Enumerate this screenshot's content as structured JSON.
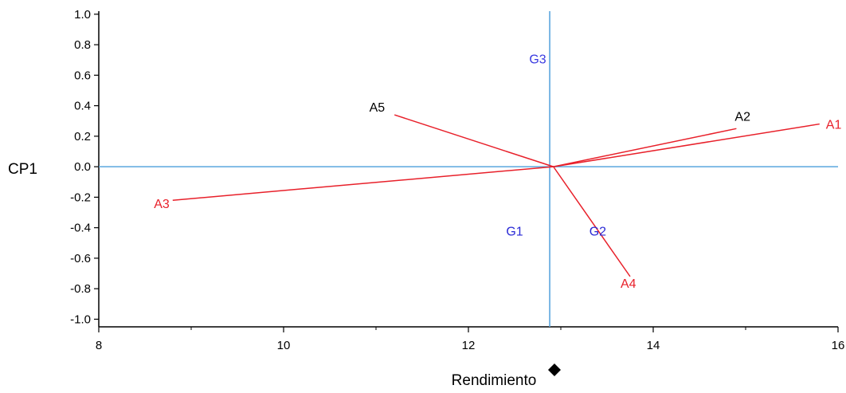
{
  "chart_data": {
    "type": "scatter",
    "title": "",
    "xlabel": "Rendimiento",
    "ylabel": "CP1",
    "xlim": [
      8,
      16
    ],
    "ylim": [
      -1.05,
      1.02
    ],
    "x_ticks": [
      "8",
      "10",
      "12",
      "14",
      "16"
    ],
    "y_ticks": [
      "1.0",
      "0.8",
      "0.6",
      "0.4",
      "0.2",
      "0.0",
      "-0.2",
      "-0.4",
      "-0.6",
      "-0.8",
      "-1.0"
    ],
    "grid": false,
    "reference_lines": {
      "x": 12.88,
      "y": 0.0
    },
    "vector_origin": {
      "x": 12.92,
      "y": 0.0
    },
    "environments": [
      {
        "label": "A1",
        "x": 15.8,
        "y": 0.28,
        "color": "#e8202a"
      },
      {
        "label": "A2",
        "x": 14.9,
        "y": 0.25,
        "color": "#000000"
      },
      {
        "label": "A3",
        "x": 8.8,
        "y": -0.22,
        "color": "#e8202a"
      },
      {
        "label": "A4",
        "x": 13.75,
        "y": -0.72,
        "color": "#e8202a"
      },
      {
        "label": "A5",
        "x": 11.2,
        "y": 0.34,
        "color": "#000000"
      }
    ],
    "genotypes": [
      {
        "label": "G1",
        "x": 12.5,
        "y": -0.42,
        "color": "#2a2ad6"
      },
      {
        "label": "G2",
        "x": 13.4,
        "y": -0.42,
        "color": "#2a2ad6"
      },
      {
        "label": "G3",
        "x": 12.75,
        "y": 0.71,
        "color": "#3a3ae0"
      }
    ]
  },
  "colors": {
    "vector": "#e8202a",
    "reference_line": "#5aa6de",
    "axis": "#000000",
    "marker": "#000000"
  }
}
